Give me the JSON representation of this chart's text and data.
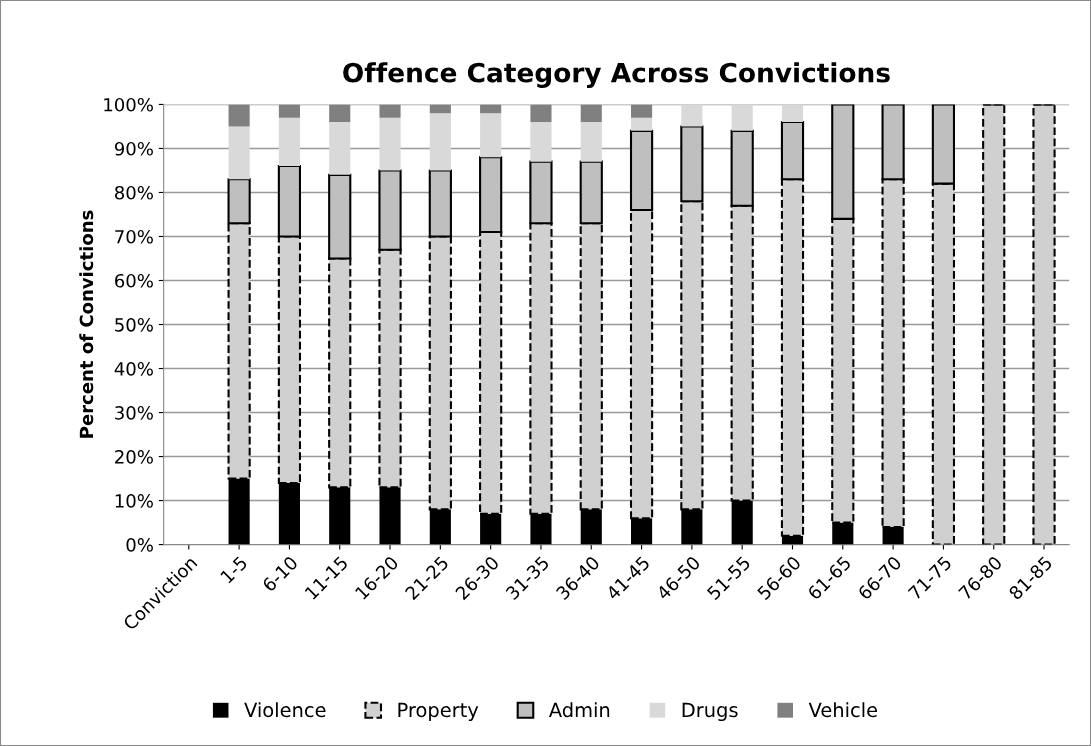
{
  "chart_data": {
    "type": "bar",
    "stacked": true,
    "title": "Offence Category Across Convictions",
    "ylabel": "Percent of Convictions",
    "categories": [
      "Conviction",
      "1-5",
      "6-10",
      "11-15",
      "16-20",
      "21-25",
      "26-30",
      "31-35",
      "36-40",
      "41-45",
      "46-50",
      "51-55",
      "56-60",
      "61-65",
      "66-70",
      "71-75",
      "76-80",
      "81-85"
    ],
    "series": [
      {
        "name": "Violence",
        "color": "#000000",
        "values": [
          null,
          15,
          14,
          13,
          13,
          8,
          7,
          7,
          8,
          6,
          8,
          10,
          2,
          5,
          4,
          0,
          0,
          0
        ]
      },
      {
        "name": "Property",
        "color": "#d0d0d0",
        "line_style": "dashed",
        "values": [
          null,
          58,
          56,
          52,
          54,
          62,
          64,
          66,
          65,
          70,
          70,
          67,
          81,
          69,
          79,
          82,
          100,
          100
        ]
      },
      {
        "name": "Admin",
        "color": "#bfbfbf",
        "line_style": "solid",
        "values": [
          null,
          10,
          16,
          19,
          18,
          15,
          17,
          14,
          14,
          18,
          17,
          17,
          13,
          26,
          17,
          18,
          0,
          0
        ]
      },
      {
        "name": "Drugs",
        "color": "#d9d9d9",
        "values": [
          null,
          12,
          11,
          12,
          12,
          13,
          10,
          9,
          9,
          3,
          5,
          6,
          4,
          0,
          0,
          0,
          0,
          0
        ]
      },
      {
        "name": "Vehicle",
        "color": "#808080",
        "values": [
          null,
          5,
          3,
          4,
          3,
          2,
          2,
          4,
          4,
          3,
          0,
          0,
          0,
          0,
          0,
          0,
          0,
          0
        ]
      }
    ],
    "ylim": [
      0,
      100
    ],
    "yticks": [
      {
        "value": 0,
        "label": "0%"
      },
      {
        "value": 10,
        "label": "10%"
      },
      {
        "value": 20,
        "label": "20%"
      },
      {
        "value": 30,
        "label": "30%"
      },
      {
        "value": 40,
        "label": "40%"
      },
      {
        "value": 50,
        "label": "50%"
      },
      {
        "value": 60,
        "label": "60%"
      },
      {
        "value": 70,
        "label": "70%"
      },
      {
        "value": 80,
        "label": "80%"
      },
      {
        "value": 90,
        "label": "90%"
      },
      {
        "value": 100,
        "label": "100%"
      }
    ],
    "grid": "y",
    "legend": "bottom"
  }
}
